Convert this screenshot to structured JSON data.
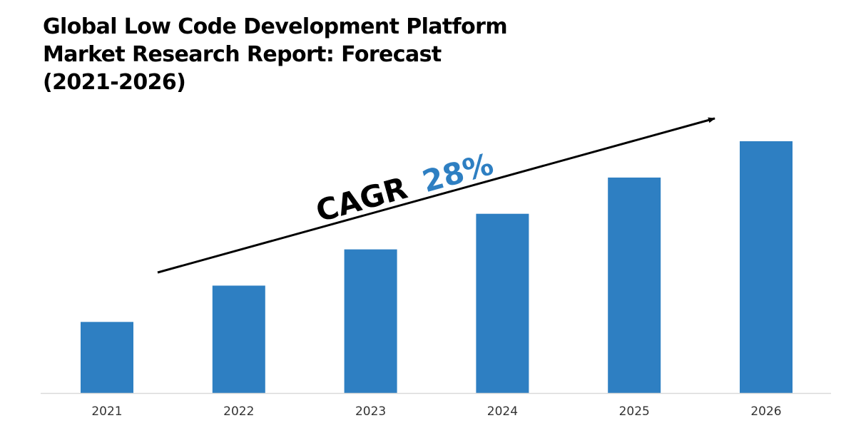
{
  "title_lines": [
    "Global Low Code Development Platform",
    "Market Research Report: Forecast",
    "(2021-2026)"
  ],
  "annotation": {
    "label": "CAGR",
    "value": "28%",
    "label_color": "#000000",
    "value_color": "#2e7fc2"
  },
  "colors": {
    "bar": "#2e7fc2",
    "axis": "#d9d9d9",
    "arrow": "#000000"
  },
  "chart_data": {
    "type": "bar",
    "title": "Global Low Code Development Platform Market Research Report: Forecast (2021-2026)",
    "categories": [
      "2021",
      "2022",
      "2023",
      "2024",
      "2025",
      "2026"
    ],
    "values": [
      1.0,
      1.51,
      2.02,
      2.52,
      3.03,
      3.54
    ],
    "value_note": "relative bar heights (no value axis shown)",
    "xlabel": "",
    "ylabel": "",
    "ylim": [
      0,
      3.54
    ],
    "grid": false,
    "legend": "none",
    "annotations": [
      "CAGR 28%"
    ]
  }
}
